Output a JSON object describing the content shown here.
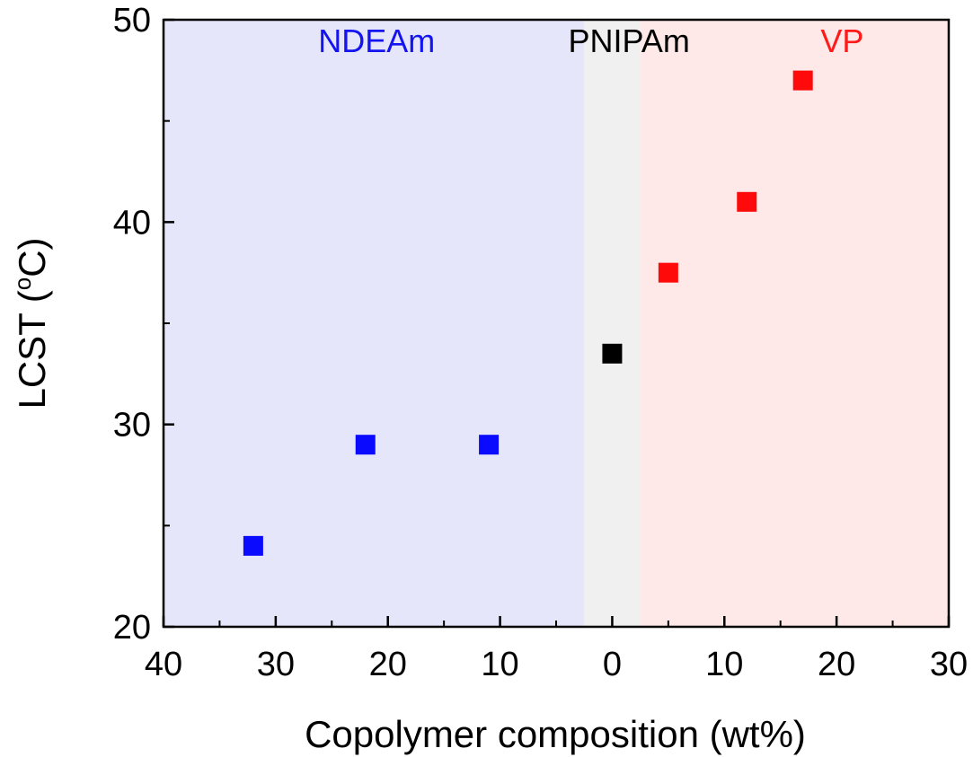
{
  "chart_data": {
    "type": "scatter",
    "title": "",
    "xlabel": "Copolymer composition (wt%)",
    "ylabel_main": "LCST (",
    "ylabel_sup": "o",
    "ylabel_end": "C)",
    "x_range": [
      -40,
      30
    ],
    "y_range": [
      20,
      50
    ],
    "x_ticks": [
      -40,
      -30,
      -20,
      -10,
      0,
      10,
      20,
      30
    ],
    "x_tick_labels": [
      "40",
      "30",
      "20",
      "10",
      "0",
      "10",
      "20",
      "30"
    ],
    "y_ticks": [
      20,
      30,
      40,
      50
    ],
    "y_tick_labels": [
      "20",
      "30",
      "40",
      "50"
    ],
    "regions": [
      {
        "label": "NDEAm",
        "x_range": [
          -40,
          -2.5
        ],
        "color": "#e6e6fa",
        "label_color": "#1414f0"
      },
      {
        "label": "PNIPAm",
        "x_range": [
          -2.5,
          2.5
        ],
        "color": "#f0f0f0",
        "label_color": "#000000"
      },
      {
        "label": "VP",
        "x_range": [
          2.5,
          30
        ],
        "color": "#ffe8e8",
        "label_color": "#ff1a1a"
      }
    ],
    "series": [
      {
        "color": "#0a0aff",
        "points": [
          [
            -32,
            24
          ],
          [
            -22,
            29
          ],
          [
            -11,
            29
          ]
        ]
      },
      {
        "color": "#000000",
        "points": [
          [
            0,
            33.5
          ]
        ]
      },
      {
        "color": "#ff0a0a",
        "points": [
          [
            5,
            37.5
          ],
          [
            12,
            41
          ],
          [
            17,
            47
          ]
        ]
      }
    ],
    "grid": false,
    "marker": "square"
  }
}
